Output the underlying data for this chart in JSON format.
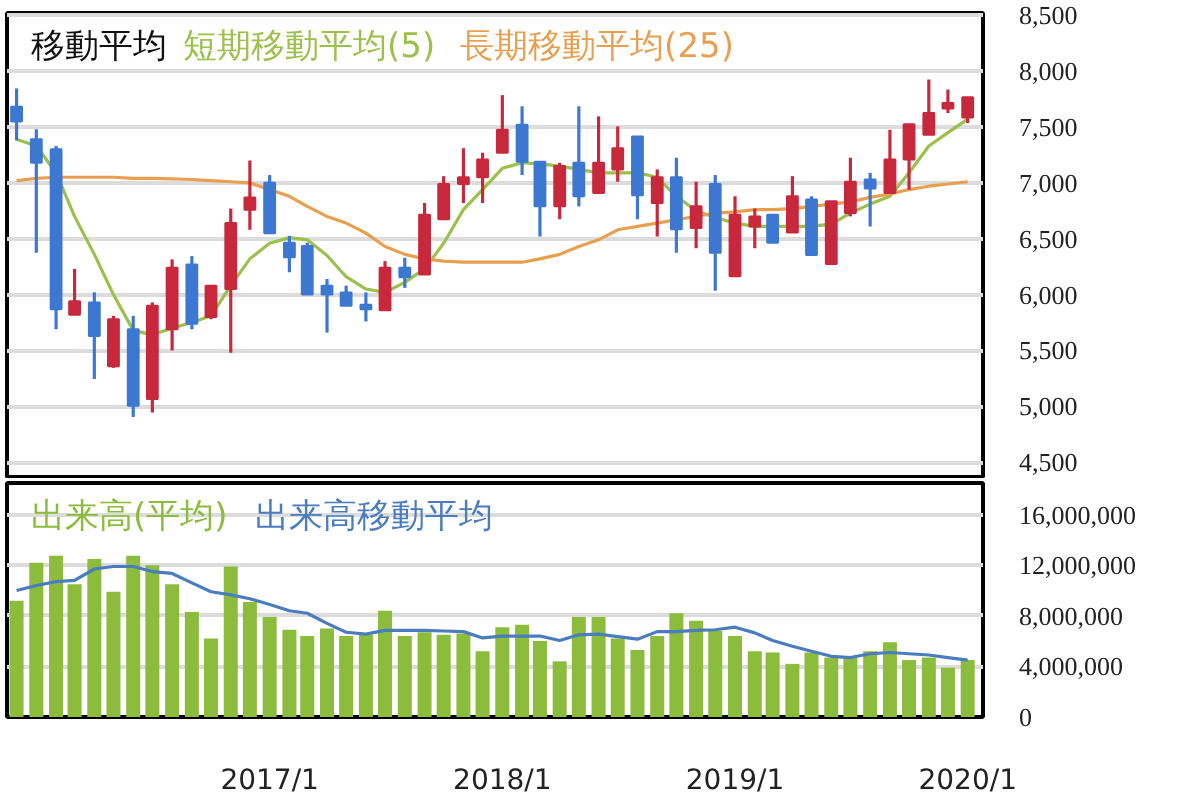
{
  "chart_data": [
    {
      "type": "candlestick",
      "legend_title": "移動平均",
      "legend": "top left",
      "grid": "y",
      "tick_labels": "y",
      "x": [
        "2015-12",
        "2016-01",
        "2016-02",
        "2016-03",
        "2016-04",
        "2016-05",
        "2016-06",
        "2016-07",
        "2016-08",
        "2016-09",
        "2016-10",
        "2016-11",
        "2016-12",
        "2017-01",
        "2017-02",
        "2017-03",
        "2017-04",
        "2017-05",
        "2017-06",
        "2017-07",
        "2017-08",
        "2017-09",
        "2017-10",
        "2017-11",
        "2017-12",
        "2018-01",
        "2018-02",
        "2018-03",
        "2018-04",
        "2018-05",
        "2018-06",
        "2018-07",
        "2018-08",
        "2018-09",
        "2018-10",
        "2018-11",
        "2018-12",
        "2019-01",
        "2019-02",
        "2019-03",
        "2019-04",
        "2019-05",
        "2019-06",
        "2019-07",
        "2019-08",
        "2019-09",
        "2019-10",
        "2019-11",
        "2019-12",
        "2020-01"
      ],
      "ohlc": [
        [
          7680,
          7845,
          7380,
          7550
        ],
        [
          7390,
          7480,
          6375,
          7180
        ],
        [
          7300,
          7330,
          5690,
          5870
        ],
        [
          5820,
          6230,
          5820,
          5940
        ],
        [
          5930,
          6020,
          5245,
          5630
        ],
        [
          5360,
          5810,
          5345,
          5780
        ],
        [
          5690,
          5810,
          4905,
          5005
        ],
        [
          5065,
          5930,
          4945,
          5900
        ],
        [
          5690,
          6315,
          5500,
          6240
        ],
        [
          6270,
          6345,
          5690,
          5740
        ],
        [
          5800,
          6080,
          5780,
          6080
        ],
        [
          6050,
          6770,
          5480,
          6640
        ],
        [
          6760,
          7200,
          6580,
          6870
        ],
        [
          7000,
          7070,
          6550,
          6550
        ],
        [
          6465,
          6525,
          6200,
          6335
        ],
        [
          6435,
          6465,
          6000,
          6000
        ],
        [
          6080,
          6140,
          5660,
          6000
        ],
        [
          6020,
          6080,
          5900,
          5900
        ],
        [
          5910,
          6020,
          5760,
          5870
        ],
        [
          5860,
          6300,
          5860,
          6240
        ],
        [
          6240,
          6330,
          6060,
          6155
        ],
        [
          6180,
          6820,
          6180,
          6715
        ],
        [
          6675,
          7060,
          6675,
          6990
        ],
        [
          6990,
          7310,
          6820,
          7050
        ],
        [
          7050,
          7270,
          6820,
          7210
        ],
        [
          7270,
          7785,
          7270,
          7475
        ],
        [
          7520,
          7685,
          7070,
          7190
        ],
        [
          7190,
          7190,
          6520,
          6790
        ],
        [
          6790,
          7180,
          6675,
          7150
        ],
        [
          7180,
          7685,
          6790,
          6880
        ],
        [
          6910,
          7595,
          6910,
          7180
        ],
        [
          7120,
          7505,
          7010,
          7310
        ],
        [
          7415,
          7415,
          6675,
          6890
        ],
        [
          6820,
          7120,
          6520,
          7050
        ],
        [
          7050,
          7225,
          6375,
          6585
        ],
        [
          6595,
          7010,
          6415,
          6790
        ],
        [
          6990,
          7070,
          6035,
          6375
        ],
        [
          6165,
          6880,
          6165,
          6715
        ],
        [
          6610,
          6770,
          6415,
          6700
        ],
        [
          6715,
          6715,
          6465,
          6465
        ],
        [
          6555,
          7060,
          6555,
          6880
        ],
        [
          6850,
          6880,
          6355,
          6355
        ],
        [
          6275,
          6835,
          6275,
          6835
        ],
        [
          6730,
          7225,
          6700,
          7010
        ],
        [
          7030,
          7090,
          6610,
          6950
        ],
        [
          6910,
          7475,
          6910,
          7210
        ],
        [
          7210,
          7525,
          6940,
          7525
        ],
        [
          7430,
          7925,
          7430,
          7625
        ],
        [
          7665,
          7835,
          7625,
          7715
        ],
        [
          7585,
          7765,
          7535,
          7765
        ]
      ],
      "colors": [
        "#3c78d2",
        "#3c78d2",
        "#3c78d2",
        "#c8283c",
        "#3c78d2",
        "#c8283c",
        "#3c78d2",
        "#c8283c",
        "#c8283c",
        "#3c78d2",
        "#c8283c",
        "#c8283c",
        "#c8283c",
        "#3c78d2",
        "#3c78d2",
        "#3c78d2",
        "#3c78d2",
        "#3c78d2",
        "#3c78d2",
        "#c8283c",
        "#3c78d2",
        "#c8283c",
        "#c8283c",
        "#c8283c",
        "#c8283c",
        "#c8283c",
        "#3c78d2",
        "#3c78d2",
        "#c8283c",
        "#3c78d2",
        "#c8283c",
        "#c8283c",
        "#3c78d2",
        "#c8283c",
        "#3c78d2",
        "#c8283c",
        "#3c78d2",
        "#c8283c",
        "#c8283c",
        "#3c78d2",
        "#c8283c",
        "#3c78d2",
        "#c8283c",
        "#c8283c",
        "#3c78d2",
        "#c8283c",
        "#c8283c",
        "#c8283c",
        "#c8283c",
        "#c8283c"
      ],
      "series": [
        {
          "name": "短期移動平均(5)",
          "type": "line",
          "color": "#9cc04c",
          "values": [
            7390,
            7330,
            7090,
            6700,
            6360,
            6000,
            5680,
            5640,
            5700,
            5750,
            5810,
            6080,
            6320,
            6460,
            6510,
            6490,
            6350,
            6160,
            6050,
            6020,
            6110,
            6230,
            6460,
            6760,
            6940,
            7130,
            7180,
            7170,
            7150,
            7120,
            7090,
            7090,
            7090,
            7050,
            6880,
            6750,
            6690,
            6640,
            6610,
            6610,
            6610,
            6610,
            6630,
            6730,
            6810,
            6880,
            7090,
            7330,
            7450,
            7570
          ]
        },
        {
          "name": "長期移動平均(25)",
          "type": "line",
          "color": "#e8a050",
          "values": [
            7020,
            7040,
            7050,
            7050,
            7050,
            7050,
            7040,
            7040,
            7035,
            7030,
            7020,
            7010,
            7000,
            6940,
            6880,
            6790,
            6700,
            6640,
            6550,
            6430,
            6360,
            6320,
            6300,
            6290,
            6290,
            6290,
            6290,
            6320,
            6360,
            6430,
            6490,
            6580,
            6610,
            6640,
            6670,
            6700,
            6730,
            6740,
            6760,
            6760,
            6770,
            6790,
            6810,
            6830,
            6870,
            6900,
            6940,
            6970,
            6990,
            7010
          ]
        }
      ],
      "xlim": [
        "2015-11-16",
        "2020-01-25"
      ],
      "ylim": [
        4350,
        8520
      ],
      "yticks": [
        {
          "value": 4500,
          "label": "4,500"
        },
        {
          "value": 5000,
          "label": "5,000"
        },
        {
          "value": 5500,
          "label": "5,500"
        },
        {
          "value": 6000,
          "label": "6,000"
        },
        {
          "value": 6500,
          "label": "6,500"
        },
        {
          "value": 7000,
          "label": "7,000"
        },
        {
          "value": 7500,
          "label": "7,500"
        },
        {
          "value": 8000,
          "label": "8,000"
        },
        {
          "value": 8500,
          "label": "8,500"
        }
      ]
    },
    {
      "type": "bar",
      "legend": "top left",
      "grid": "y",
      "x": [
        "2015-12",
        "2016-01",
        "2016-02",
        "2016-03",
        "2016-04",
        "2016-05",
        "2016-06",
        "2016-07",
        "2016-08",
        "2016-09",
        "2016-10",
        "2016-11",
        "2016-12",
        "2017-01",
        "2017-02",
        "2017-03",
        "2017-04",
        "2017-05",
        "2017-06",
        "2017-07",
        "2017-08",
        "2017-09",
        "2017-10",
        "2017-11",
        "2017-12",
        "2018-01",
        "2018-02",
        "2018-03",
        "2018-04",
        "2018-05",
        "2018-06",
        "2018-07",
        "2018-08",
        "2018-09",
        "2018-10",
        "2018-11",
        "2018-12",
        "2019-01",
        "2019-02",
        "2019-03",
        "2019-04",
        "2019-05",
        "2019-06",
        "2019-07",
        "2019-08",
        "2019-09",
        "2019-10",
        "2019-11",
        "2019-12",
        "2020-01"
      ],
      "series": [
        {
          "name": "出来高(平均)",
          "type": "bar",
          "color": "#8cbc3c",
          "values": [
            9200000,
            12200000,
            12750000,
            10500000,
            12500000,
            9900000,
            12750000,
            12000000,
            10500000,
            8300000,
            6200000,
            11900000,
            9100000,
            7900000,
            6900000,
            6400000,
            7000000,
            6400000,
            6500000,
            8400000,
            6400000,
            6700000,
            6500000,
            6600000,
            5200000,
            7100000,
            7300000,
            6000000,
            4400000,
            7900000,
            7900000,
            6200000,
            5300000,
            6400000,
            8200000,
            7600000,
            6800000,
            6400000,
            5200000,
            5100000,
            4200000,
            5100000,
            4700000,
            4700000,
            5200000,
            5900000,
            4500000,
            4700000,
            3900000,
            4500000
          ]
        },
        {
          "name": "出来高移動平均",
          "type": "line",
          "color": "#4a7cbf",
          "values": [
            10000000,
            10400000,
            10700000,
            10800000,
            11700000,
            11900000,
            11900000,
            11500000,
            11350000,
            10600000,
            9900000,
            9650000,
            9350000,
            8900000,
            8400000,
            8200000,
            7400000,
            6700000,
            6550000,
            6850000,
            6850000,
            6850000,
            6800000,
            6750000,
            6250000,
            6400000,
            6400000,
            6400000,
            6050000,
            6500000,
            6550000,
            6350000,
            6150000,
            6750000,
            6750000,
            6850000,
            6900000,
            7100000,
            6650000,
            6050000,
            5600000,
            5200000,
            4800000,
            4700000,
            5000000,
            5100000,
            5000000,
            4900000,
            4700000,
            4500000
          ]
        }
      ],
      "xlim": [
        "2015-11-16",
        "2020-01-25"
      ],
      "xticks": [
        {
          "value": "2017-01",
          "label": "2017/1"
        },
        {
          "value": "2018-01",
          "label": "2018/1"
        },
        {
          "value": "2019-01",
          "label": "2019/1"
        },
        {
          "value": "2020-01",
          "label": "2020/1"
        }
      ],
      "ylim": [
        0,
        18500000
      ],
      "yticks": [
        {
          "value": 0,
          "label": "0"
        },
        {
          "value": 4000000,
          "label": "4,000,000"
        },
        {
          "value": 8000000,
          "label": "8,000,000"
        },
        {
          "value": 12000000,
          "label": "12,000,000"
        },
        {
          "value": 16000000,
          "label": "16,000,000"
        }
      ]
    }
  ]
}
